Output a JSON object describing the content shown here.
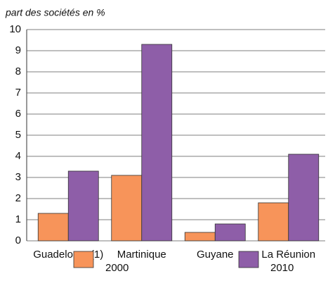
{
  "chart_data": {
    "type": "bar",
    "subtitle": "part des sociétés en %",
    "categories": [
      "Guadeloupe(1)",
      "Martinique",
      "Guyane",
      "La Réunion"
    ],
    "series": [
      {
        "name": "2000",
        "color": "#f7945a",
        "values": [
          1.3,
          3.1,
          0.4,
          1.8
        ]
      },
      {
        "name": "2010",
        "color": "#8e5ea8",
        "values": [
          3.3,
          9.3,
          0.8,
          4.1
        ]
      }
    ],
    "ylim": [
      0,
      10
    ],
    "yticks": [
      0,
      1,
      2,
      3,
      4,
      5,
      6,
      7,
      8,
      9,
      10
    ],
    "grid": true
  }
}
